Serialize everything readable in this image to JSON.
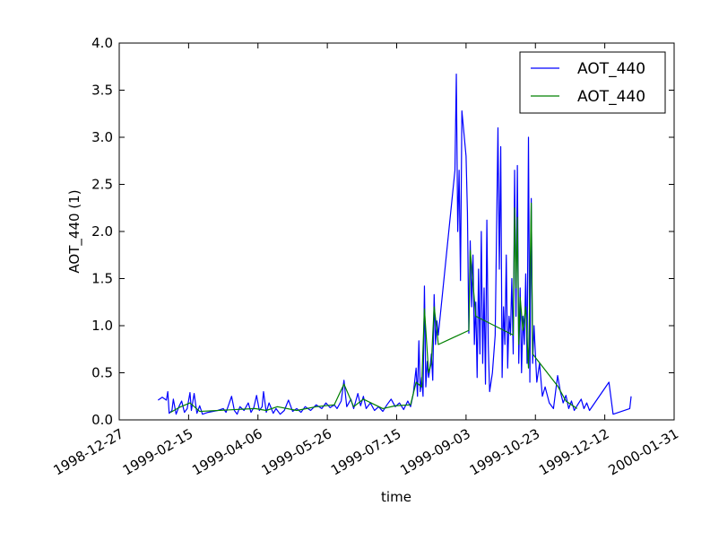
{
  "chart_data": {
    "type": "line",
    "title": "",
    "xlabel": "time",
    "ylabel": "AOT_440 (1)",
    "x_ticks": [
      "1998-12-27",
      "1999-02-15",
      "1999-04-06",
      "1999-05-26",
      "1999-07-15",
      "1999-09-03",
      "1999-10-23",
      "1999-12-12",
      "2000-01-31"
    ],
    "y_ticks": [
      "0.0",
      "0.5",
      "1.0",
      "1.5",
      "2.0",
      "2.5",
      "3.0",
      "3.5",
      "4.0"
    ],
    "xlim": [
      "1998-12-27",
      "2000-01-31"
    ],
    "ylim": [
      0,
      4
    ],
    "grid": false,
    "legend_position": "top-right",
    "series": [
      {
        "name": "AOT_440",
        "color": "#0000ff",
        "points": [
          [
            "1999-01-24",
            0.21
          ],
          [
            "1999-01-27",
            0.24
          ],
          [
            "1999-01-30",
            0.21
          ],
          [
            "1999-01-31",
            0.3
          ],
          [
            "1999-02-01",
            0.07
          ],
          [
            "1999-02-03",
            0.1
          ],
          [
            "1999-02-04",
            0.22
          ],
          [
            "1999-02-06",
            0.06
          ],
          [
            "1999-02-08",
            0.14
          ],
          [
            "1999-02-10",
            0.2
          ],
          [
            "1999-02-12",
            0.08
          ],
          [
            "1999-02-14",
            0.12
          ],
          [
            "1999-02-16",
            0.29
          ],
          [
            "1999-02-17",
            0.1
          ],
          [
            "1999-02-19",
            0.28
          ],
          [
            "1999-02-21",
            0.07
          ],
          [
            "1999-02-23",
            0.15
          ],
          [
            "1999-02-25",
            0.06
          ],
          [
            "1999-03-01",
            0.08
          ],
          [
            "1999-03-08",
            0.1
          ],
          [
            "1999-03-12",
            0.12
          ],
          [
            "1999-03-14",
            0.08
          ],
          [
            "1999-03-18",
            0.25
          ],
          [
            "1999-03-20",
            0.1
          ],
          [
            "1999-03-22",
            0.06
          ],
          [
            "1999-03-24",
            0.14
          ],
          [
            "1999-03-27",
            0.1
          ],
          [
            "1999-03-30",
            0.18
          ],
          [
            "1999-04-01",
            0.08
          ],
          [
            "1999-04-03",
            0.13
          ],
          [
            "1999-04-05",
            0.26
          ],
          [
            "1999-04-07",
            0.1
          ],
          [
            "1999-04-09",
            0.14
          ],
          [
            "1999-04-10",
            0.3
          ],
          [
            "1999-04-12",
            0.08
          ],
          [
            "1999-04-14",
            0.18
          ],
          [
            "1999-04-17",
            0.07
          ],
          [
            "1999-04-19",
            0.12
          ],
          [
            "1999-04-22",
            0.06
          ],
          [
            "1999-04-25",
            0.1
          ],
          [
            "1999-04-28",
            0.21
          ],
          [
            "1999-05-01",
            0.09
          ],
          [
            "1999-05-04",
            0.12
          ],
          [
            "1999-05-07",
            0.08
          ],
          [
            "1999-05-10",
            0.14
          ],
          [
            "1999-05-14",
            0.1
          ],
          [
            "1999-05-18",
            0.16
          ],
          [
            "1999-05-22",
            0.12
          ],
          [
            "1999-05-25",
            0.18
          ],
          [
            "1999-05-28",
            0.13
          ],
          [
            "1999-05-31",
            0.16
          ],
          [
            "1999-06-02",
            0.12
          ],
          [
            "1999-06-05",
            0.2
          ],
          [
            "1999-06-07",
            0.42
          ],
          [
            "1999-06-09",
            0.14
          ],
          [
            "1999-06-12",
            0.22
          ],
          [
            "1999-06-14",
            0.12
          ],
          [
            "1999-06-17",
            0.28
          ],
          [
            "1999-06-19",
            0.15
          ],
          [
            "1999-06-21",
            0.25
          ],
          [
            "1999-06-23",
            0.12
          ],
          [
            "1999-06-26",
            0.18
          ],
          [
            "1999-06-29",
            0.1
          ],
          [
            "1999-07-02",
            0.14
          ],
          [
            "1999-07-05",
            0.09
          ],
          [
            "1999-07-08",
            0.16
          ],
          [
            "1999-07-11",
            0.22
          ],
          [
            "1999-07-14",
            0.14
          ],
          [
            "1999-07-17",
            0.18
          ],
          [
            "1999-07-20",
            0.11
          ],
          [
            "1999-07-23",
            0.2
          ],
          [
            "1999-07-25",
            0.14
          ],
          [
            "1999-07-27",
            0.28
          ],
          [
            "1999-07-29",
            0.55
          ],
          [
            "1999-07-30",
            0.25
          ],
          [
            "1999-07-31",
            0.84
          ],
          [
            "1999-08-01",
            0.3
          ],
          [
            "1999-08-02",
            0.45
          ],
          [
            "1999-08-03",
            0.25
          ],
          [
            "1999-08-04",
            1.42
          ],
          [
            "1999-08-05",
            0.35
          ],
          [
            "1999-08-06",
            0.62
          ],
          [
            "1999-08-07",
            0.45
          ],
          [
            "1999-08-08",
            0.55
          ],
          [
            "1999-08-09",
            0.7
          ],
          [
            "1999-08-10",
            0.42
          ],
          [
            "1999-08-11",
            1.33
          ],
          [
            "1999-08-12",
            0.8
          ],
          [
            "1999-08-13",
            1.05
          ],
          [
            "1999-08-14",
            0.9
          ],
          [
            "1999-08-26",
            2.65
          ],
          [
            "1999-08-27",
            3.67
          ],
          [
            "1999-08-28",
            2.0
          ],
          [
            "1999-08-29",
            2.65
          ],
          [
            "1999-08-30",
            1.48
          ],
          [
            "1999-08-31",
            3.28
          ],
          [
            "1999-09-03",
            2.8
          ],
          [
            "1999-09-04",
            2.2
          ],
          [
            "1999-09-05",
            0.92
          ],
          [
            "1999-09-06",
            1.9
          ],
          [
            "1999-09-07",
            1.2
          ],
          [
            "1999-09-08",
            1.75
          ],
          [
            "1999-09-09",
            0.8
          ],
          [
            "1999-09-10",
            1.25
          ],
          [
            "1999-09-11",
            0.45
          ],
          [
            "1999-09-12",
            1.6
          ],
          [
            "1999-09-13",
            0.7
          ],
          [
            "1999-09-14",
            2.0
          ],
          [
            "1999-09-15",
            0.6
          ],
          [
            "1999-09-16",
            1.4
          ],
          [
            "1999-09-17",
            0.38
          ],
          [
            "1999-09-18",
            2.12
          ],
          [
            "1999-09-19",
            0.8
          ],
          [
            "1999-09-20",
            0.3
          ],
          [
            "1999-09-22",
            0.5
          ],
          [
            "1999-09-24",
            0.9
          ],
          [
            "1999-09-26",
            3.1
          ],
          [
            "1999-09-27",
            1.6
          ],
          [
            "1999-09-28",
            2.9
          ],
          [
            "1999-09-29",
            0.45
          ],
          [
            "1999-09-30",
            1.2
          ],
          [
            "1999-10-01",
            0.8
          ],
          [
            "1999-10-02",
            1.75
          ],
          [
            "1999-10-03",
            0.55
          ],
          [
            "1999-10-04",
            1.1
          ],
          [
            "1999-10-05",
            0.9
          ],
          [
            "1999-10-06",
            1.5
          ],
          [
            "1999-10-07",
            0.7
          ],
          [
            "1999-10-08",
            2.65
          ],
          [
            "1999-10-09",
            1.1
          ],
          [
            "1999-10-10",
            2.7
          ],
          [
            "1999-10-11",
            0.6
          ],
          [
            "1999-10-12",
            1.4
          ],
          [
            "1999-10-13",
            0.5
          ],
          [
            "1999-10-14",
            1.1
          ],
          [
            "1999-10-15",
            0.8
          ],
          [
            "1999-10-16",
            1.55
          ],
          [
            "1999-10-17",
            0.6
          ],
          [
            "1999-10-18",
            3.0
          ],
          [
            "1999-10-19",
            0.4
          ],
          [
            "1999-10-20",
            2.35
          ],
          [
            "1999-10-21",
            0.6
          ],
          [
            "1999-10-22",
            1.0
          ],
          [
            "1999-10-24",
            0.4
          ],
          [
            "1999-10-26",
            0.6
          ],
          [
            "1999-10-28",
            0.25
          ],
          [
            "1999-10-30",
            0.35
          ],
          [
            "1999-11-02",
            0.18
          ],
          [
            "1999-11-05",
            0.12
          ],
          [
            "1999-11-08",
            0.47
          ],
          [
            "1999-11-10",
            0.3
          ],
          [
            "1999-11-12",
            0.18
          ],
          [
            "1999-11-14",
            0.26
          ],
          [
            "1999-11-16",
            0.12
          ],
          [
            "1999-11-18",
            0.2
          ],
          [
            "1999-11-20",
            0.1
          ],
          [
            "1999-11-22",
            0.15
          ],
          [
            "1999-11-25",
            0.22
          ],
          [
            "1999-11-27",
            0.12
          ],
          [
            "1999-11-29",
            0.18
          ],
          [
            "1999-12-01",
            0.1
          ],
          [
            "1999-12-15",
            0.4
          ],
          [
            "1999-12-18",
            0.06
          ],
          [
            "1999-12-30",
            0.12
          ],
          [
            "1999-12-31",
            0.25
          ]
        ]
      },
      {
        "name": "AOT_440",
        "color": "#008000",
        "points": [
          [
            "1999-02-02",
            0.08
          ],
          [
            "1999-02-08",
            0.13
          ],
          [
            "1999-02-16",
            0.18
          ],
          [
            "1999-02-23",
            0.09
          ],
          [
            "1999-04-04",
            0.12
          ],
          [
            "1999-04-12",
            0.1
          ],
          [
            "1999-04-20",
            0.14
          ],
          [
            "1999-05-04",
            0.1
          ],
          [
            "1999-05-18",
            0.14
          ],
          [
            "1999-05-31",
            0.16
          ],
          [
            "1999-06-07",
            0.38
          ],
          [
            "1999-06-14",
            0.14
          ],
          [
            "1999-06-21",
            0.22
          ],
          [
            "1999-07-05",
            0.12
          ],
          [
            "1999-07-14",
            0.15
          ],
          [
            "1999-07-25",
            0.16
          ],
          [
            "1999-07-29",
            0.4
          ],
          [
            "1999-08-02",
            0.35
          ],
          [
            "1999-08-04",
            1.18
          ],
          [
            "1999-08-07",
            0.5
          ],
          [
            "1999-08-09",
            0.6
          ],
          [
            "1999-08-11",
            1.2
          ],
          [
            "1999-08-13",
            0.95
          ],
          [
            "1999-08-14",
            0.8
          ],
          [
            "1999-09-05",
            0.95
          ],
          [
            "1999-09-06",
            1.8
          ],
          [
            "1999-09-08",
            1.45
          ],
          [
            "1999-09-10",
            1.1
          ],
          [
            "1999-10-07",
            0.9
          ],
          [
            "1999-10-08",
            2.25
          ],
          [
            "1999-10-09",
            1.4
          ],
          [
            "1999-10-10",
            2.15
          ],
          [
            "1999-10-11",
            0.8
          ],
          [
            "1999-10-12",
            1.3
          ],
          [
            "1999-10-14",
            0.95
          ],
          [
            "1999-10-16",
            1.2
          ],
          [
            "1999-10-18",
            0.55
          ],
          [
            "1999-10-20",
            2.3
          ],
          [
            "1999-10-21",
            0.7
          ],
          [
            "1999-11-08",
            0.36
          ],
          [
            "1999-11-14",
            0.2
          ],
          [
            "1999-11-22",
            0.12
          ]
        ]
      }
    ]
  }
}
